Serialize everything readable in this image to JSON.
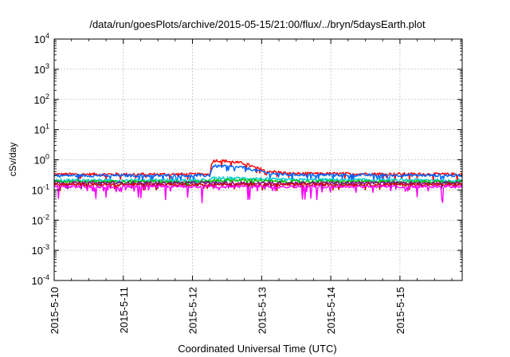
{
  "chart_data": {
    "type": "line",
    "title": "/data/run/goesPlots/archive/2015-05-15/21:00/flux/../bryn/5daysEarth.plot",
    "xlabel": "Coordinated Universal Time (UTC)",
    "ylabel": "cSv/day",
    "y_scale": "log",
    "ylim": [
      0.0001,
      10000
    ],
    "xlim_days": [
      0,
      5.9
    ],
    "grid": true,
    "y_ticks": [
      {
        "base": "10",
        "exp": "-4"
      },
      {
        "base": "10",
        "exp": "-3"
      },
      {
        "base": "10",
        "exp": "-2"
      },
      {
        "base": "10",
        "exp": "-1"
      },
      {
        "base": "10",
        "exp": "0"
      },
      {
        "base": "10",
        "exp": "1"
      },
      {
        "base": "10",
        "exp": "2"
      },
      {
        "base": "10",
        "exp": "3"
      },
      {
        "base": "10",
        "exp": "4"
      }
    ],
    "x_ticks": [
      "2015-5-10",
      "2015-5-11",
      "2015-5-12",
      "2015-5-13",
      "2015-5-14",
      "2015-5-15"
    ],
    "series": [
      {
        "color": "#ff0000",
        "profile": [
          [
            0,
            0.33
          ],
          [
            2.25,
            0.33
          ],
          [
            2.3,
            0.95
          ],
          [
            2.5,
            0.9
          ],
          [
            2.75,
            0.75
          ],
          [
            2.9,
            0.55
          ],
          [
            3.1,
            0.42
          ],
          [
            3.4,
            0.35
          ],
          [
            5.9,
            0.33
          ]
        ]
      },
      {
        "color": "#0066ff",
        "profile": [
          [
            0,
            0.3
          ],
          [
            2.25,
            0.3
          ],
          [
            2.3,
            0.62
          ],
          [
            2.5,
            0.6
          ],
          [
            2.75,
            0.55
          ],
          [
            2.9,
            0.45
          ],
          [
            3.1,
            0.36
          ],
          [
            3.4,
            0.32
          ],
          [
            5.9,
            0.3
          ]
        ]
      },
      {
        "color": "#00cccc",
        "profile": [
          [
            0,
            0.21
          ],
          [
            2.25,
            0.21
          ],
          [
            2.3,
            0.25
          ],
          [
            2.9,
            0.24
          ],
          [
            3.2,
            0.22
          ],
          [
            5.9,
            0.21
          ]
        ]
      },
      {
        "color": "#00bb00",
        "profile": [
          [
            0,
            0.19
          ],
          [
            2.25,
            0.19
          ],
          [
            2.3,
            0.21
          ],
          [
            2.9,
            0.21
          ],
          [
            3.2,
            0.19
          ],
          [
            5.9,
            0.19
          ]
        ]
      },
      {
        "color": "#880088",
        "profile": [
          [
            0,
            0.17
          ],
          [
            5.9,
            0.17
          ]
        ]
      },
      {
        "color": "#cc0000",
        "profile": [
          [
            0,
            0.15
          ],
          [
            5.9,
            0.15
          ]
        ]
      },
      {
        "color": "#ff00ff",
        "profile": [
          [
            0,
            0.13
          ],
          [
            5.9,
            0.13
          ]
        ]
      }
    ]
  }
}
